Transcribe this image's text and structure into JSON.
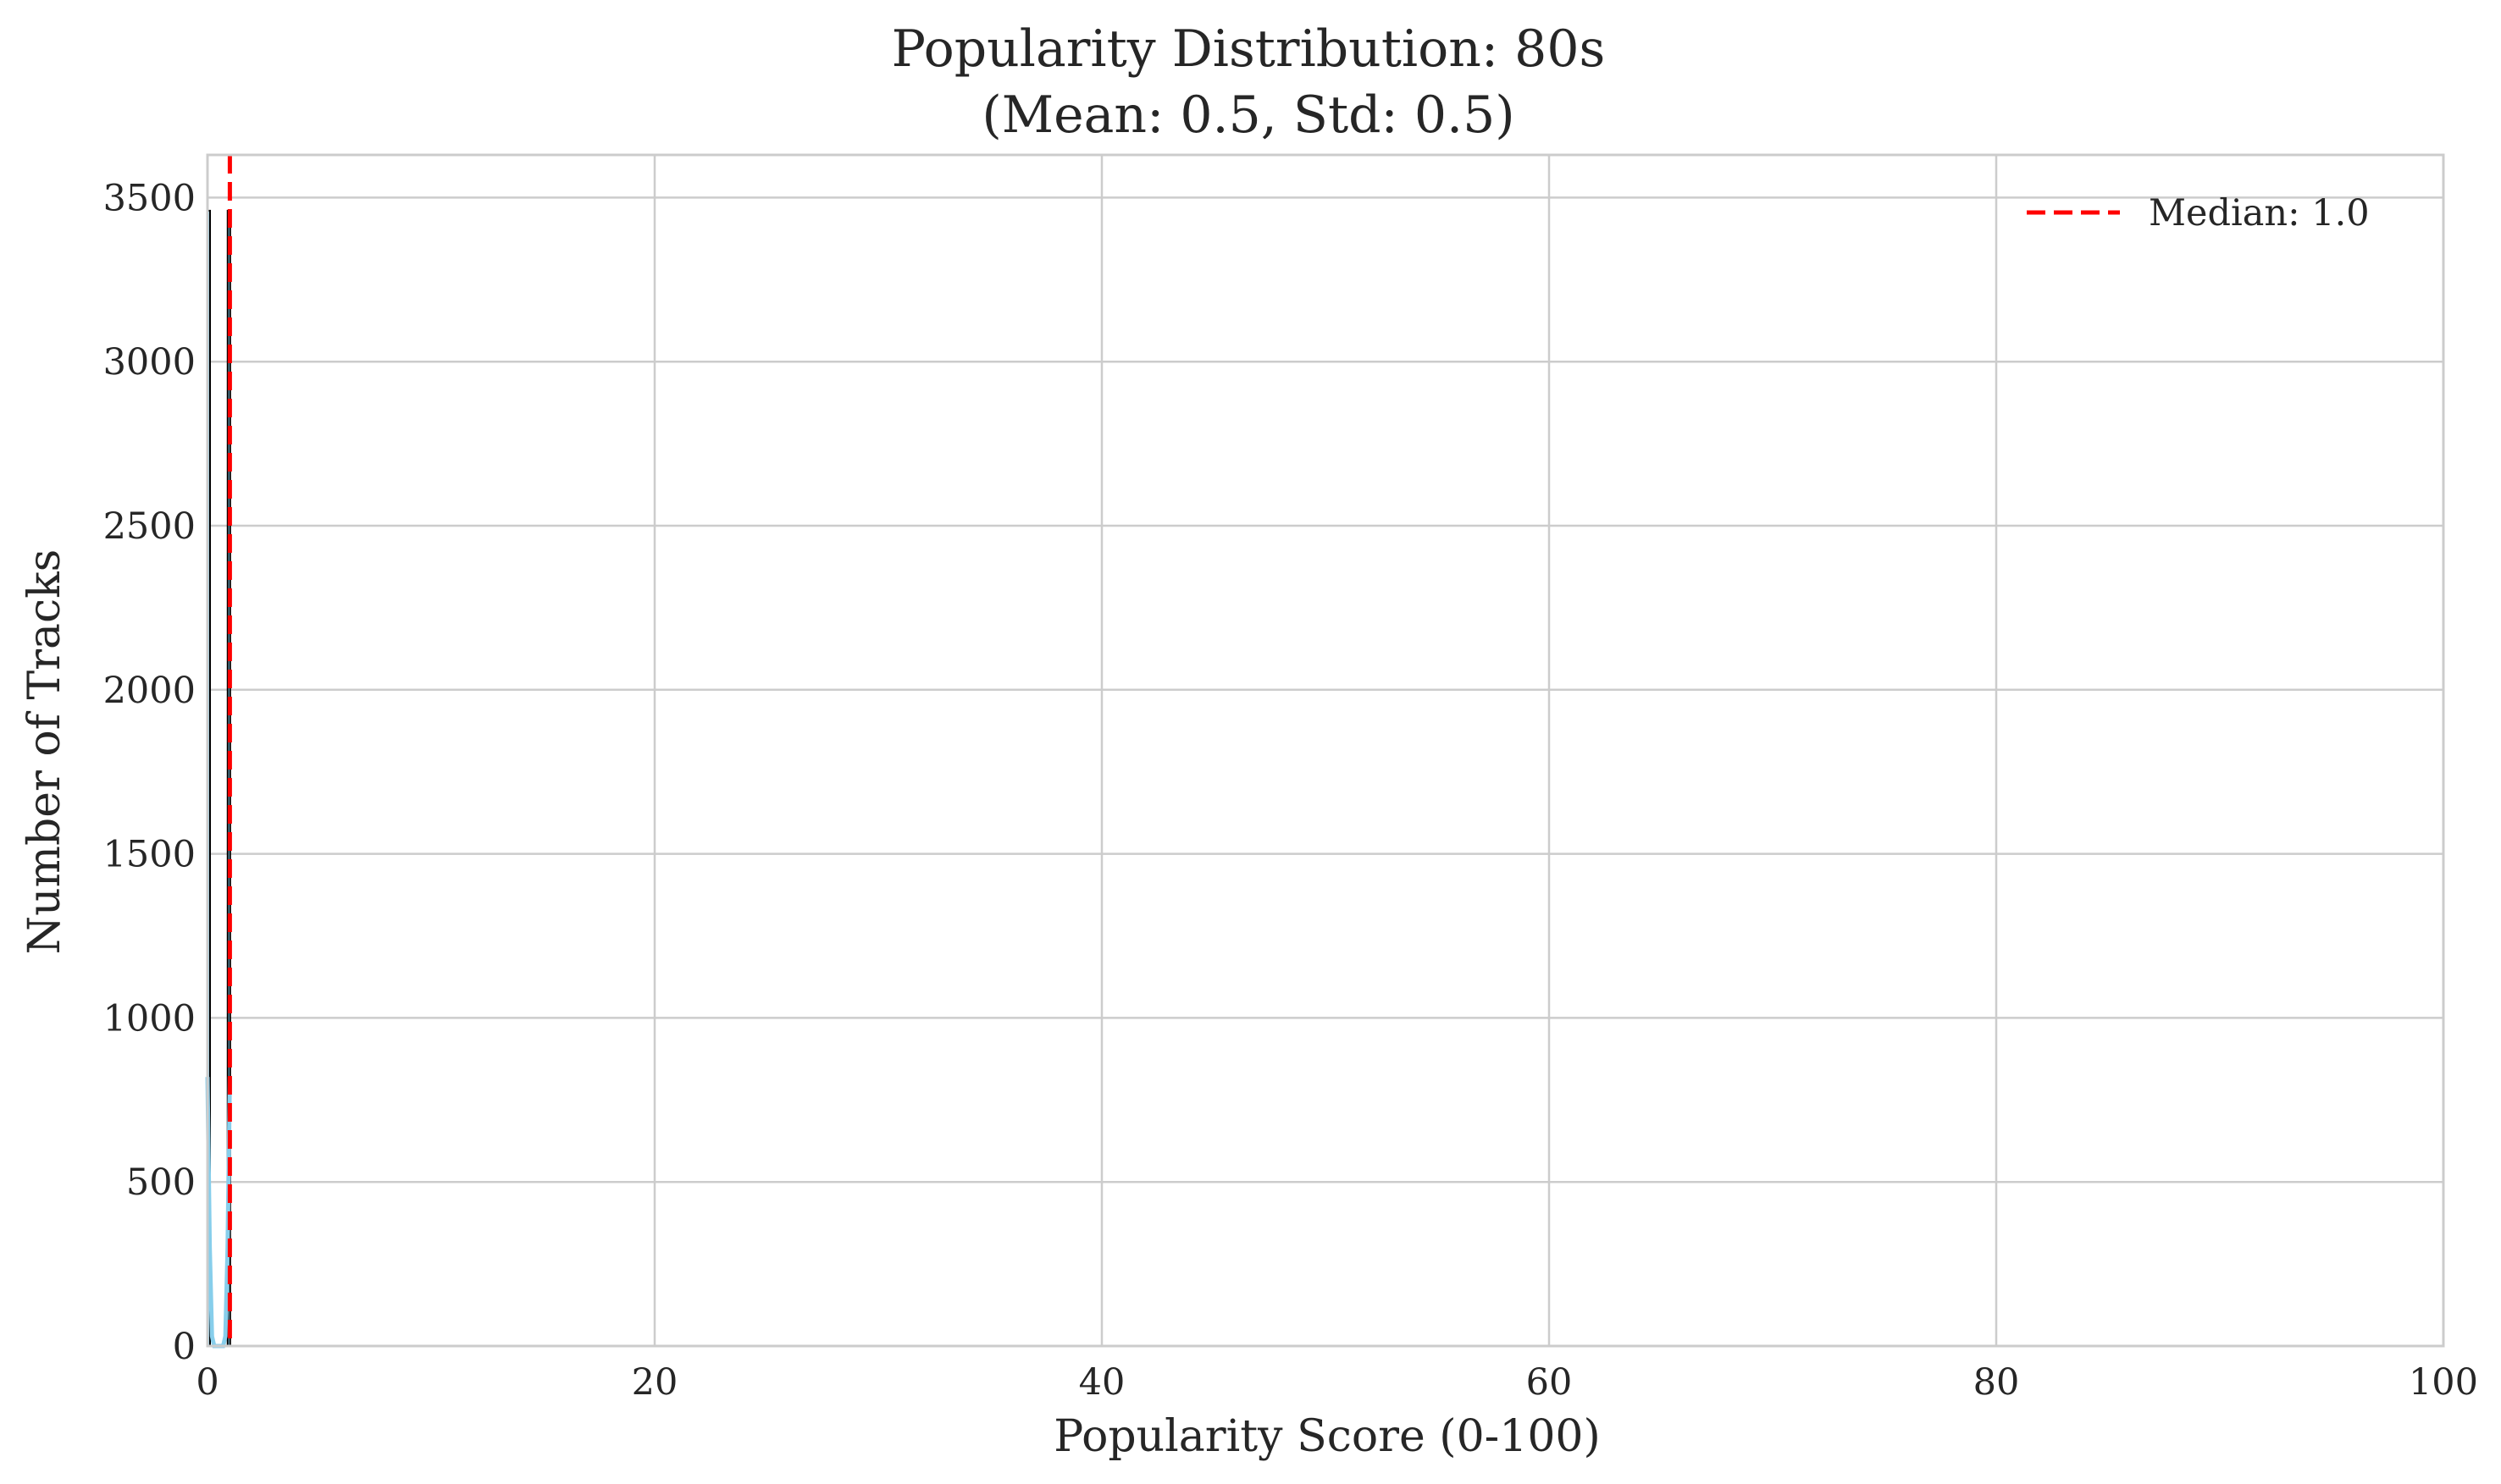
{
  "chart_data": {
    "type": "bar",
    "title": "Popularity Distribution: 80s",
    "subtitle": "(Mean: 0.5, Std: 0.5)",
    "xlabel": "Popularity Score (0-100)",
    "ylabel": "Number of Tracks",
    "xlim": [
      0,
      100
    ],
    "ylim": [
      0,
      3630
    ],
    "xticks": [
      0,
      20,
      40,
      60,
      80,
      100
    ],
    "yticks": [
      0,
      500,
      1000,
      1500,
      2000,
      2500,
      3000,
      3500
    ],
    "grid": true,
    "bars": [
      {
        "x0": 0.0,
        "x1": 0.1,
        "value": 3460
      },
      {
        "x0": 0.9,
        "x1": 1.0,
        "value": 3460
      }
    ],
    "kde": {
      "color": "#87ceeb",
      "x": [
        0.0,
        0.1,
        0.2,
        0.3,
        0.4,
        0.5,
        0.6,
        0.7,
        0.8,
        0.9,
        1.0
      ],
      "y": [
        820,
        300,
        30,
        0,
        0,
        0,
        0,
        0,
        30,
        300,
        820
      ]
    },
    "median": {
      "value": 1.0,
      "label": "Median: 1.0",
      "color": "#ff0000"
    },
    "legend_position": "top-right",
    "colors": {
      "bar_edge": "#000000",
      "bar_fill": "#87ceeb",
      "grid": "#cccccc",
      "frame": "#cccccc"
    }
  }
}
